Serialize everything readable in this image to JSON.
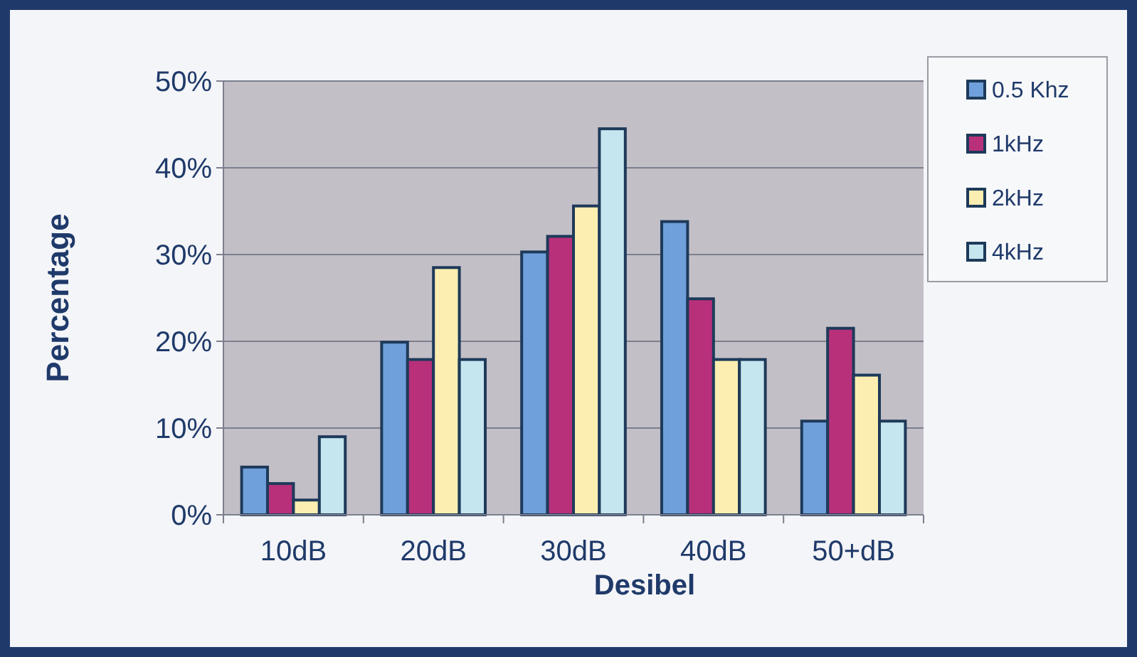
{
  "chart_data": {
    "type": "bar",
    "xlabel": "Desibel",
    "ylabel": "Percentage",
    "categories": [
      "10dB",
      "20dB",
      "30dB",
      "40dB",
      "50+dB"
    ],
    "series": [
      {
        "name": "0.5 Khz",
        "color": "#6fa0dc",
        "values": [
          5.5,
          19.9,
          30.3,
          33.8,
          10.8
        ]
      },
      {
        "name": "1kHz",
        "color": "#b8307a",
        "values": [
          3.6,
          17.9,
          32.1,
          24.9,
          21.5
        ]
      },
      {
        "name": "2kHz",
        "color": "#fbeeb0",
        "values": [
          1.7,
          28.5,
          35.6,
          17.9,
          16.1
        ]
      },
      {
        "name": "4kHz",
        "color": "#c6e6ef",
        "values": [
          9.0,
          17.9,
          44.5,
          17.9,
          10.8
        ]
      }
    ],
    "ylim": [
      0,
      50
    ],
    "yticks": [
      {
        "value": 0,
        "label": "0%"
      },
      {
        "value": 10,
        "label": "10%"
      },
      {
        "value": 20,
        "label": "20%"
      },
      {
        "value": 30,
        "label": "30%"
      },
      {
        "value": 40,
        "label": "40%"
      },
      {
        "value": 50,
        "label": "50%"
      }
    ],
    "grid": "y",
    "legend": "top right"
  }
}
